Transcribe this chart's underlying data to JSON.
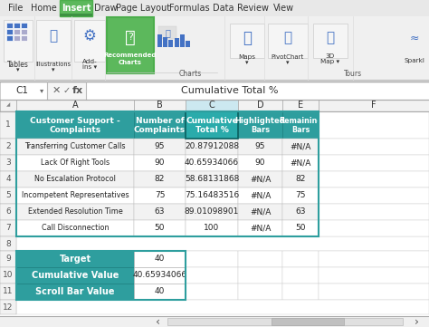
{
  "ribbon_tabs": [
    "File",
    "Home",
    "Insert",
    "Draw",
    "Page Layout",
    "Formulas",
    "Data",
    "Review",
    "View"
  ],
  "active_tab": "Insert",
  "formula_cell": "C1",
  "formula_text": "Cumulative Total %",
  "col_headers": [
    "A",
    "B",
    "C",
    "D",
    "E",
    "F"
  ],
  "header_row": {
    "a": "Customer Support -\nComplaints",
    "b": "Number of\nComplaints",
    "c": "Cumulative\nTotal %",
    "d": "Highlighted\nBars",
    "e": "Remaining\nBars"
  },
  "data_rows": [
    {
      "a": "Transferring Customer Calls",
      "b": "95",
      "c": "20.87912088",
      "d": "95",
      "e": "#N/A"
    },
    {
      "a": "Lack Of Right Tools",
      "b": "90",
      "c": "40.65934066",
      "d": "90",
      "e": "#N/A"
    },
    {
      "a": "No Escalation Protocol",
      "b": "82",
      "c": "58.68131868",
      "d": "#N/A",
      "e": "82"
    },
    {
      "a": "Incompetent Representatives",
      "b": "75",
      "c": "75.16483516",
      "d": "#N/A",
      "e": "75"
    },
    {
      "a": "Extended Resolution Time",
      "b": "63",
      "c": "89.01098901",
      "d": "#N/A",
      "e": "63"
    },
    {
      "a": "Call Disconnection",
      "b": "50",
      "c": "100",
      "d": "#N/A",
      "e": "50"
    }
  ],
  "summary_rows": [
    {
      "label": "Target",
      "value": "40"
    },
    {
      "label": "Cumulative Value",
      "value": "40.65934066"
    },
    {
      "label": "Scroll Bar Value",
      "value": "40"
    }
  ],
  "teal": "#2E9E9E",
  "teal_dark": "#1a7a7a",
  "green_tab": "#5cb85c",
  "green_tab_dark": "#4cae4c",
  "row_alt": "#e8e8e8",
  "row_white": "#ffffff",
  "row_num_bg": "#f2f2f2",
  "col_hdr_bg": "#e8e8e8",
  "col_hdr_sel": "#d0e8f0",
  "ribbon_bg": "#f0f0f0",
  "sheet_bg": "#ffffff",
  "border_gray": "#cccccc",
  "text_dark": "#222222",
  "text_gray": "#555555",
  "tab_text_color": "#333333"
}
